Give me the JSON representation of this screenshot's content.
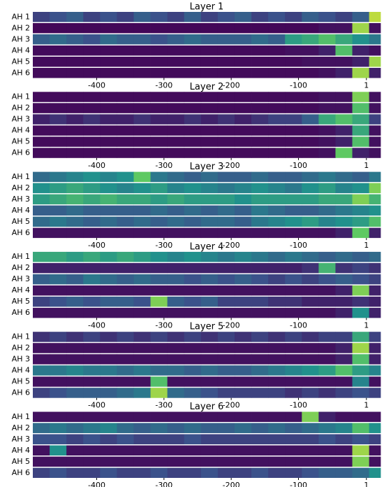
{
  "chart_data": [
    {
      "type": "heatmap",
      "title": "Layer 1",
      "colormap": "viridis",
      "categories": [
        "AH 1",
        "AH 2",
        "AH 3",
        "AH 4",
        "AH 5",
        "AH 6"
      ],
      "bins": [
        -495,
        -470,
        -445,
        -420,
        -395,
        -370,
        -345,
        -320,
        -295,
        -270,
        -245,
        -220,
        -195,
        -170,
        -145,
        -120,
        -95,
        -70,
        -45,
        -20,
        5,
        22
      ],
      "xlim": [
        -495,
        22
      ],
      "xticks": [
        -400,
        -300,
        -200,
        -100,
        1
      ],
      "values": [
        [
          0.2,
          0.25,
          0.3,
          0.2,
          0.25,
          0.2,
          0.3,
          0.25,
          0.2,
          0.3,
          0.2,
          0.25,
          0.3,
          0.2,
          0.25,
          0.2,
          0.3,
          0.25,
          0.2,
          0.3,
          0.9
        ],
        [
          0.02,
          0.02,
          0.02,
          0.02,
          0.02,
          0.02,
          0.02,
          0.02,
          0.02,
          0.02,
          0.02,
          0.02,
          0.02,
          0.02,
          0.02,
          0.02,
          0.02,
          0.05,
          0.05,
          0.85,
          0.05
        ],
        [
          0.3,
          0.35,
          0.3,
          0.25,
          0.35,
          0.3,
          0.3,
          0.25,
          0.3,
          0.35,
          0.3,
          0.3,
          0.3,
          0.35,
          0.3,
          0.55,
          0.6,
          0.7,
          0.6,
          0.5,
          0.4
        ],
        [
          0.03,
          0.03,
          0.03,
          0.03,
          0.03,
          0.03,
          0.03,
          0.03,
          0.03,
          0.03,
          0.03,
          0.03,
          0.03,
          0.03,
          0.03,
          0.05,
          0.05,
          0.1,
          0.7,
          0.1,
          0.05
        ],
        [
          0.03,
          0.03,
          0.03,
          0.03,
          0.03,
          0.03,
          0.03,
          0.03,
          0.03,
          0.03,
          0.03,
          0.03,
          0.03,
          0.03,
          0.03,
          0.03,
          0.05,
          0.05,
          0.05,
          0.1,
          0.85
        ],
        [
          0.03,
          0.03,
          0.03,
          0.03,
          0.03,
          0.03,
          0.03,
          0.03,
          0.03,
          0.03,
          0.03,
          0.03,
          0.03,
          0.03,
          0.03,
          0.03,
          0.03,
          0.05,
          0.1,
          0.85,
          0.1
        ]
      ]
    },
    {
      "type": "heatmap",
      "title": "Layer 2",
      "colormap": "viridis",
      "categories": [
        "AH 1",
        "AH 2",
        "AH 3",
        "AH 4",
        "AH 5",
        "AH 6"
      ],
      "bins": [
        -495,
        -470,
        -445,
        -420,
        -395,
        -370,
        -345,
        -320,
        -295,
        -270,
        -245,
        -220,
        -195,
        -170,
        -145,
        -120,
        -95,
        -70,
        -45,
        -20,
        5,
        22
      ],
      "xlim": [
        -495,
        22
      ],
      "xticks": [
        -400,
        -300,
        -200,
        -100,
        1
      ],
      "values": [
        [
          0.03,
          0.03,
          0.03,
          0.03,
          0.03,
          0.03,
          0.03,
          0.03,
          0.03,
          0.03,
          0.03,
          0.03,
          0.03,
          0.03,
          0.03,
          0.03,
          0.03,
          0.05,
          0.05,
          0.8,
          0.05
        ],
        [
          0.03,
          0.03,
          0.03,
          0.03,
          0.03,
          0.03,
          0.03,
          0.03,
          0.03,
          0.03,
          0.03,
          0.03,
          0.03,
          0.03,
          0.03,
          0.03,
          0.03,
          0.05,
          0.05,
          0.7,
          0.05
        ],
        [
          0.1,
          0.15,
          0.1,
          0.15,
          0.1,
          0.1,
          0.15,
          0.1,
          0.1,
          0.15,
          0.1,
          0.15,
          0.1,
          0.15,
          0.2,
          0.2,
          0.3,
          0.6,
          0.7,
          0.6,
          0.2
        ],
        [
          0.03,
          0.03,
          0.03,
          0.03,
          0.03,
          0.03,
          0.03,
          0.03,
          0.03,
          0.03,
          0.03,
          0.03,
          0.03,
          0.03,
          0.03,
          0.03,
          0.03,
          0.05,
          0.1,
          0.6,
          0.05
        ],
        [
          0.03,
          0.03,
          0.03,
          0.03,
          0.03,
          0.03,
          0.03,
          0.03,
          0.03,
          0.03,
          0.03,
          0.03,
          0.03,
          0.03,
          0.03,
          0.03,
          0.03,
          0.05,
          0.1,
          0.7,
          0.05
        ],
        [
          0.03,
          0.03,
          0.03,
          0.03,
          0.03,
          0.03,
          0.03,
          0.03,
          0.03,
          0.03,
          0.03,
          0.03,
          0.03,
          0.03,
          0.03,
          0.03,
          0.03,
          0.05,
          0.75,
          0.1,
          0.05
        ]
      ]
    },
    {
      "type": "heatmap",
      "title": "Layer 3",
      "colormap": "viridis",
      "categories": [
        "AH 1",
        "AH 2",
        "AH 3",
        "AH 4",
        "AH 5",
        "AH 6"
      ],
      "bins": [
        -495,
        -470,
        -445,
        -420,
        -395,
        -370,
        -345,
        -320,
        -295,
        -270,
        -245,
        -220,
        -195,
        -170,
        -145,
        -120,
        -95,
        -70,
        -45,
        -20,
        5,
        22
      ],
      "xlim": [
        -495,
        22
      ],
      "xticks": [
        -400,
        -300,
        -200,
        -100,
        1
      ],
      "values": [
        [
          0.35,
          0.4,
          0.45,
          0.5,
          0.45,
          0.5,
          0.75,
          0.4,
          0.35,
          0.3,
          0.35,
          0.3,
          0.3,
          0.35,
          0.3,
          0.3,
          0.35,
          0.4,
          0.35,
          0.3,
          0.4
        ],
        [
          0.5,
          0.55,
          0.6,
          0.55,
          0.5,
          0.45,
          0.5,
          0.55,
          0.45,
          0.5,
          0.45,
          0.4,
          0.45,
          0.5,
          0.45,
          0.4,
          0.5,
          0.55,
          0.45,
          0.5,
          0.8
        ],
        [
          0.55,
          0.6,
          0.65,
          0.6,
          0.65,
          0.6,
          0.6,
          0.55,
          0.6,
          0.55,
          0.55,
          0.55,
          0.5,
          0.55,
          0.55,
          0.55,
          0.55,
          0.6,
          0.6,
          0.8,
          0.65
        ],
        [
          0.3,
          0.3,
          0.35,
          0.3,
          0.3,
          0.3,
          0.3,
          0.35,
          0.3,
          0.35,
          0.3,
          0.35,
          0.3,
          0.4,
          0.35,
          0.3,
          0.3,
          0.35,
          0.4,
          0.45,
          0.5
        ],
        [
          0.35,
          0.4,
          0.35,
          0.3,
          0.35,
          0.3,
          0.35,
          0.3,
          0.35,
          0.3,
          0.35,
          0.35,
          0.3,
          0.4,
          0.45,
          0.5,
          0.55,
          0.45,
          0.5,
          0.55,
          0.7
        ],
        [
          0.05,
          0.05,
          0.05,
          0.05,
          0.05,
          0.05,
          0.05,
          0.05,
          0.05,
          0.05,
          0.05,
          0.05,
          0.05,
          0.05,
          0.05,
          0.05,
          0.05,
          0.05,
          0.1,
          0.75,
          0.1
        ]
      ]
    },
    {
      "type": "heatmap",
      "title": "Layer 4",
      "colormap": "viridis",
      "categories": [
        "AH 1",
        "AH 2",
        "AH 3",
        "AH 4",
        "AH 5",
        "AH 6"
      ],
      "bins": [
        -495,
        -470,
        -445,
        -420,
        -395,
        -370,
        -345,
        -320,
        -295,
        -270,
        -245,
        -220,
        -195,
        -170,
        -145,
        -120,
        -95,
        -70,
        -45,
        -20,
        5,
        22
      ],
      "xlim": [
        -495,
        22
      ],
      "xticks": [
        -400,
        -300,
        -200,
        -100,
        1
      ],
      "values": [
        [
          0.6,
          0.6,
          0.55,
          0.6,
          0.55,
          0.6,
          0.55,
          0.5,
          0.45,
          0.5,
          0.45,
          0.4,
          0.45,
          0.4,
          0.35,
          0.4,
          0.35,
          0.3,
          0.35,
          0.3,
          0.35
        ],
        [
          0.1,
          0.1,
          0.1,
          0.1,
          0.1,
          0.1,
          0.1,
          0.1,
          0.1,
          0.1,
          0.1,
          0.1,
          0.1,
          0.1,
          0.1,
          0.1,
          0.15,
          0.65,
          0.15,
          0.2,
          0.15
        ],
        [
          0.3,
          0.35,
          0.3,
          0.4,
          0.35,
          0.3,
          0.35,
          0.3,
          0.3,
          0.25,
          0.3,
          0.25,
          0.3,
          0.25,
          0.2,
          0.25,
          0.2,
          0.25,
          0.3,
          0.25,
          0.2
        ],
        [
          0.05,
          0.05,
          0.05,
          0.05,
          0.05,
          0.05,
          0.05,
          0.05,
          0.05,
          0.05,
          0.05,
          0.05,
          0.05,
          0.05,
          0.05,
          0.05,
          0.05,
          0.05,
          0.1,
          0.8,
          0.1
        ],
        [
          0.2,
          0.25,
          0.3,
          0.25,
          0.3,
          0.3,
          0.25,
          0.8,
          0.3,
          0.25,
          0.3,
          0.2,
          0.2,
          0.2,
          0.15,
          0.15,
          0.1,
          0.1,
          0.1,
          0.15,
          0.1
        ],
        [
          0.05,
          0.05,
          0.05,
          0.05,
          0.05,
          0.05,
          0.05,
          0.05,
          0.05,
          0.05,
          0.05,
          0.05,
          0.05,
          0.05,
          0.05,
          0.05,
          0.05,
          0.05,
          0.1,
          0.5,
          0.1
        ]
      ]
    },
    {
      "type": "heatmap",
      "title": "Layer 5",
      "colormap": "viridis",
      "categories": [
        "AH 1",
        "AH 2",
        "AH 3",
        "AH 4",
        "AH 5",
        "AH 6"
      ],
      "bins": [
        -495,
        -470,
        -445,
        -420,
        -395,
        -370,
        -345,
        -320,
        -295,
        -270,
        -245,
        -220,
        -195,
        -170,
        -145,
        -120,
        -95,
        -70,
        -45,
        -20,
        5,
        22
      ],
      "xlim": [
        -495,
        22
      ],
      "xticks": [
        -400,
        -300,
        -200,
        -100,
        1
      ],
      "values": [
        [
          0.15,
          0.2,
          0.15,
          0.2,
          0.15,
          0.2,
          0.15,
          0.2,
          0.15,
          0.2,
          0.15,
          0.2,
          0.15,
          0.2,
          0.15,
          0.2,
          0.15,
          0.2,
          0.2,
          0.6,
          0.2
        ],
        [
          0.05,
          0.05,
          0.05,
          0.05,
          0.05,
          0.05,
          0.05,
          0.05,
          0.05,
          0.05,
          0.05,
          0.05,
          0.05,
          0.05,
          0.05,
          0.05,
          0.05,
          0.05,
          0.1,
          0.85,
          0.1
        ],
        [
          0.05,
          0.05,
          0.05,
          0.05,
          0.05,
          0.05,
          0.05,
          0.05,
          0.05,
          0.05,
          0.05,
          0.05,
          0.05,
          0.05,
          0.05,
          0.05,
          0.05,
          0.05,
          0.1,
          0.7,
          0.1
        ],
        [
          0.4,
          0.4,
          0.45,
          0.4,
          0.4,
          0.35,
          0.4,
          0.35,
          0.35,
          0.3,
          0.35,
          0.3,
          0.3,
          0.35,
          0.4,
          0.45,
          0.5,
          0.55,
          0.7,
          0.55,
          0.45
        ],
        [
          0.05,
          0.05,
          0.05,
          0.05,
          0.05,
          0.05,
          0.05,
          0.7,
          0.05,
          0.05,
          0.05,
          0.05,
          0.05,
          0.05,
          0.05,
          0.05,
          0.05,
          0.05,
          0.05,
          0.45,
          0.05
        ],
        [
          0.2,
          0.25,
          0.3,
          0.3,
          0.3,
          0.35,
          0.4,
          0.85,
          0.35,
          0.3,
          0.25,
          0.2,
          0.2,
          0.2,
          0.2,
          0.15,
          0.2,
          0.15,
          0.2,
          0.25,
          0.2
        ]
      ]
    },
    {
      "type": "heatmap",
      "title": "Layer 6",
      "colormap": "viridis",
      "categories": [
        "AH 1",
        "AH 2",
        "AH 3",
        "AH 4",
        "AH 5",
        "AH 6"
      ],
      "bins": [
        -495,
        -470,
        -445,
        -420,
        -395,
        -370,
        -345,
        -320,
        -295,
        -270,
        -245,
        -220,
        -195,
        -170,
        -145,
        -120,
        -95,
        -70,
        -45,
        -20,
        5,
        22
      ],
      "xlim": [
        -495,
        22
      ],
      "xticks": [
        -400,
        -300,
        -200,
        -100,
        1
      ],
      "values": [
        [
          0.05,
          0.05,
          0.05,
          0.05,
          0.05,
          0.05,
          0.05,
          0.05,
          0.05,
          0.05,
          0.05,
          0.05,
          0.05,
          0.05,
          0.05,
          0.05,
          0.8,
          0.1,
          0.05,
          0.05,
          0.05
        ],
        [
          0.35,
          0.4,
          0.35,
          0.4,
          0.45,
          0.35,
          0.3,
          0.35,
          0.3,
          0.35,
          0.3,
          0.3,
          0.35,
          0.3,
          0.35,
          0.3,
          0.35,
          0.4,
          0.45,
          0.7,
          0.5
        ],
        [
          0.25,
          0.25,
          0.2,
          0.25,
          0.2,
          0.25,
          0.2,
          0.2,
          0.2,
          0.25,
          0.2,
          0.2,
          0.2,
          0.2,
          0.2,
          0.2,
          0.2,
          0.25,
          0.2,
          0.25,
          0.2
        ],
        [
          0.05,
          0.5,
          0.05,
          0.05,
          0.05,
          0.05,
          0.05,
          0.05,
          0.05,
          0.05,
          0.05,
          0.05,
          0.05,
          0.05,
          0.05,
          0.05,
          0.05,
          0.05,
          0.05,
          0.85,
          0.05
        ],
        [
          0.05,
          0.05,
          0.05,
          0.05,
          0.05,
          0.05,
          0.05,
          0.05,
          0.05,
          0.05,
          0.05,
          0.05,
          0.05,
          0.05,
          0.05,
          0.05,
          0.05,
          0.05,
          0.05,
          0.8,
          0.05
        ],
        [
          0.2,
          0.25,
          0.2,
          0.2,
          0.25,
          0.2,
          0.2,
          0.25,
          0.2,
          0.2,
          0.25,
          0.2,
          0.2,
          0.25,
          0.2,
          0.2,
          0.25,
          0.3,
          0.3,
          0.35,
          0.5
        ]
      ]
    }
  ]
}
